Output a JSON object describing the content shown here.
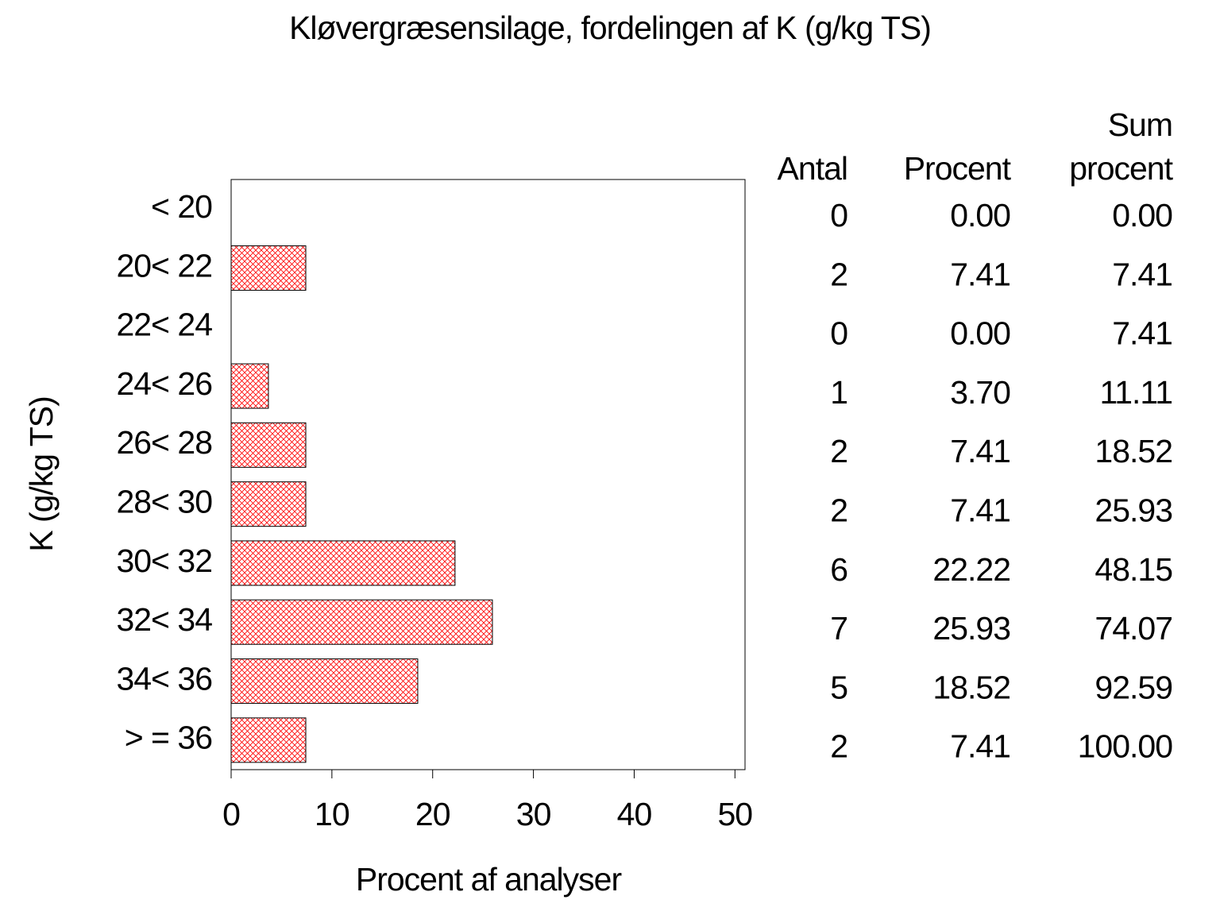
{
  "chart_data": {
    "type": "bar",
    "orientation": "horizontal",
    "title": "Kløvergræsensilage, fordelingen af K (g/kg TS)",
    "x_label": "Procent af analyser",
    "y_label": "K (g/kg TS)",
    "categories": [
      "< 20",
      "20< 22",
      "22< 24",
      "24< 26",
      "26< 28",
      "28< 30",
      "30< 32",
      "32< 34",
      "34< 36",
      "> = 36"
    ],
    "values": [
      0,
      7.41,
      0,
      3.7,
      7.41,
      7.41,
      22.22,
      25.93,
      18.52,
      7.41
    ],
    "value_labels": [
      "0.00",
      "7.41",
      "0.00",
      "3.70",
      "7.41",
      "7.41",
      "22.22",
      "25.93",
      "18.52",
      "7.41"
    ],
    "color": "#ff0000",
    "xlim": [
      0,
      51
    ],
    "xticks": [
      0,
      10,
      20,
      30,
      40,
      50
    ],
    "table": {
      "headers": [
        "Antal",
        "Procent",
        "Sum procent"
      ],
      "counts": [
        0,
        2,
        0,
        1,
        2,
        2,
        6,
        7,
        5,
        2
      ],
      "cumulative": [
        "0.00",
        "7.41",
        "7.41",
        "11.11",
        "18.52",
        "25.93",
        "48.15",
        "74.07",
        "92.59",
        "100.00"
      ]
    }
  }
}
